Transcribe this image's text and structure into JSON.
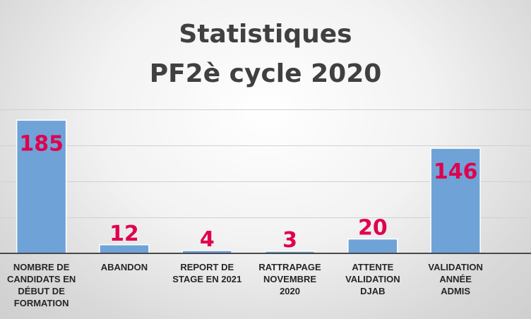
{
  "chart_data": {
    "type": "bar",
    "title": [
      "Statistiques",
      "PF2è cycle 2020"
    ],
    "categories": [
      [
        "NOMBRE DE",
        "CANDIDATS EN",
        "DÉBUT DE",
        "FORMATION"
      ],
      [
        "ABANDON"
      ],
      [
        "REPORT DE",
        "STAGE EN 2021"
      ],
      [
        "RATTRAPAGE",
        "NOVEMBRE",
        "2020"
      ],
      [
        "ATTENTE",
        "VALIDATION",
        "DJAB"
      ],
      [
        "VALIDATION",
        "ANNÉE",
        "ADMIS"
      ]
    ],
    "values": [
      185,
      12,
      4,
      3,
      20,
      146
    ],
    "data_labels": [
      "185",
      "12",
      "4",
      "3",
      "20",
      "146"
    ],
    "ylim": [
      0,
      200
    ],
    "gridlines": [
      50,
      100,
      150,
      200
    ],
    "grid": true,
    "legend": "none",
    "xlabel": "",
    "ylabel": "",
    "colors": {
      "bar": "#6fa3d8",
      "bar_stroke": "#ffffff",
      "label": "#e0004d",
      "title": "#404040"
    }
  }
}
